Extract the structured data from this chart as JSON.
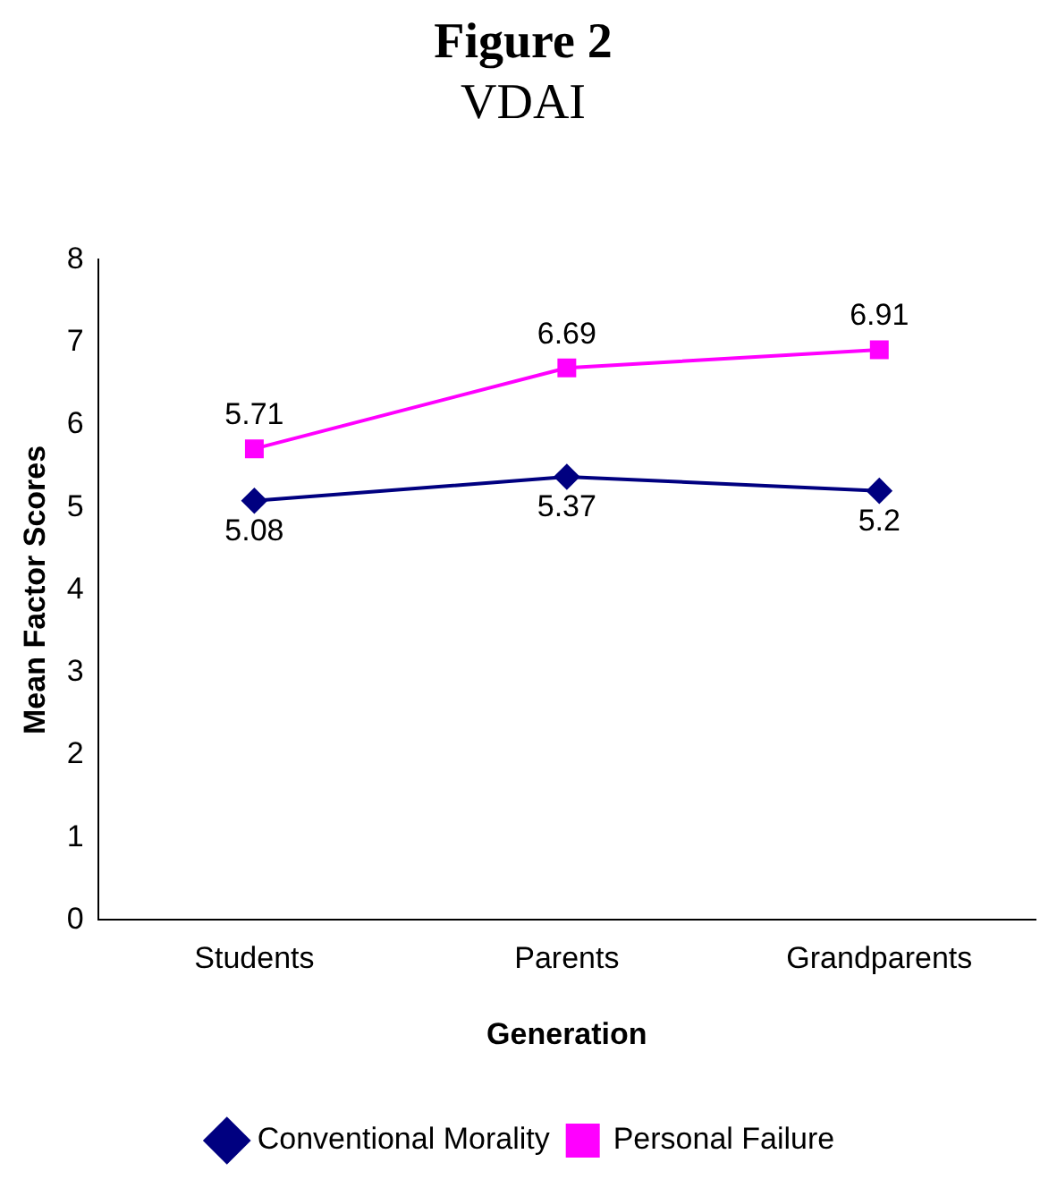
{
  "chart_data": {
    "type": "line",
    "title": "Figure 2",
    "subtitle": "VDAI",
    "xlabel": "Generation",
    "ylabel": "Mean Factor Scores",
    "categories": [
      "Students",
      "Parents",
      "Grandparents"
    ],
    "series": [
      {
        "name": "Conventional Morality",
        "color": "#000080",
        "values": [
          5.08,
          5.37,
          5.2
        ],
        "marker": "diamond"
      },
      {
        "name": "Personal Failure",
        "color": "#ff00ff",
        "values": [
          5.71,
          6.69,
          6.91
        ],
        "marker": "square"
      }
    ],
    "ylim": [
      0,
      8
    ],
    "yticks": [
      0,
      1,
      2,
      3,
      4,
      5,
      6,
      7,
      8
    ],
    "grid": false,
    "legend": "bottom",
    "data_labels": true,
    "line_style": "solid"
  }
}
